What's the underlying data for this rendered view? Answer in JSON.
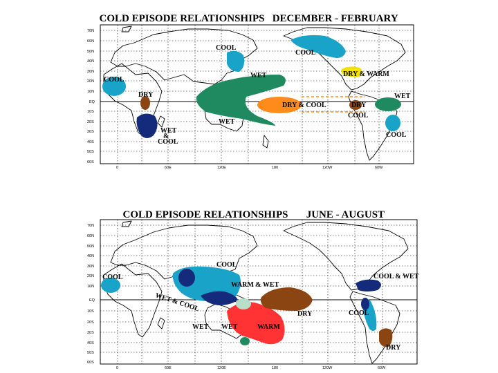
{
  "maps": [
    {
      "title_main": "COLD EPISODE RELATIONSHIPS",
      "title_season": "DECEMBER - FEBRUARY",
      "lat_ticks": [
        "70N",
        "60N",
        "50N",
        "40N",
        "30N",
        "20N",
        "10N",
        "EQ",
        "10S",
        "20S",
        "30S",
        "40S",
        "50S",
        "60S"
      ],
      "lon_ticks": [
        "0",
        "60E",
        "120E",
        "180",
        "120W",
        "60W"
      ],
      "labels": [
        "COOL",
        "COOL",
        "COOL",
        "WET",
        "DRY",
        "DRY & WARM",
        "WET",
        "DRY & COOL",
        "DRY",
        "COOL",
        "WET",
        "WET",
        "&",
        "COOL",
        "COOL"
      ]
    },
    {
      "title_main": "COLD EPISODE RELATIONSHIPS",
      "title_season": "JUNE - AUGUST",
      "lat_ticks": [
        "70N",
        "60N",
        "50N",
        "40N",
        "30N",
        "20N",
        "10N",
        "EQ",
        "10S",
        "20S",
        "30S",
        "40S",
        "50S",
        "60S"
      ],
      "lon_ticks": [
        "0",
        "60E",
        "120E",
        "180",
        "120W",
        "60W"
      ],
      "labels": [
        "COOL",
        "COOL",
        "COOL & WET",
        "WARM & WET",
        "WET & COOL",
        "DRY",
        "COOL",
        "WET",
        "WET",
        "WARM",
        "DRY"
      ]
    }
  ],
  "colors": {
    "cool": "#1aa3c8",
    "wet": "#1f8a5f",
    "dry": "#8b4513",
    "warm": "#ff3333",
    "dry_cool": "#ff8c1a",
    "dry_warm": "#f5e100",
    "cool_wet": "#142a7a",
    "warm_wet": "#b8e0c8"
  }
}
